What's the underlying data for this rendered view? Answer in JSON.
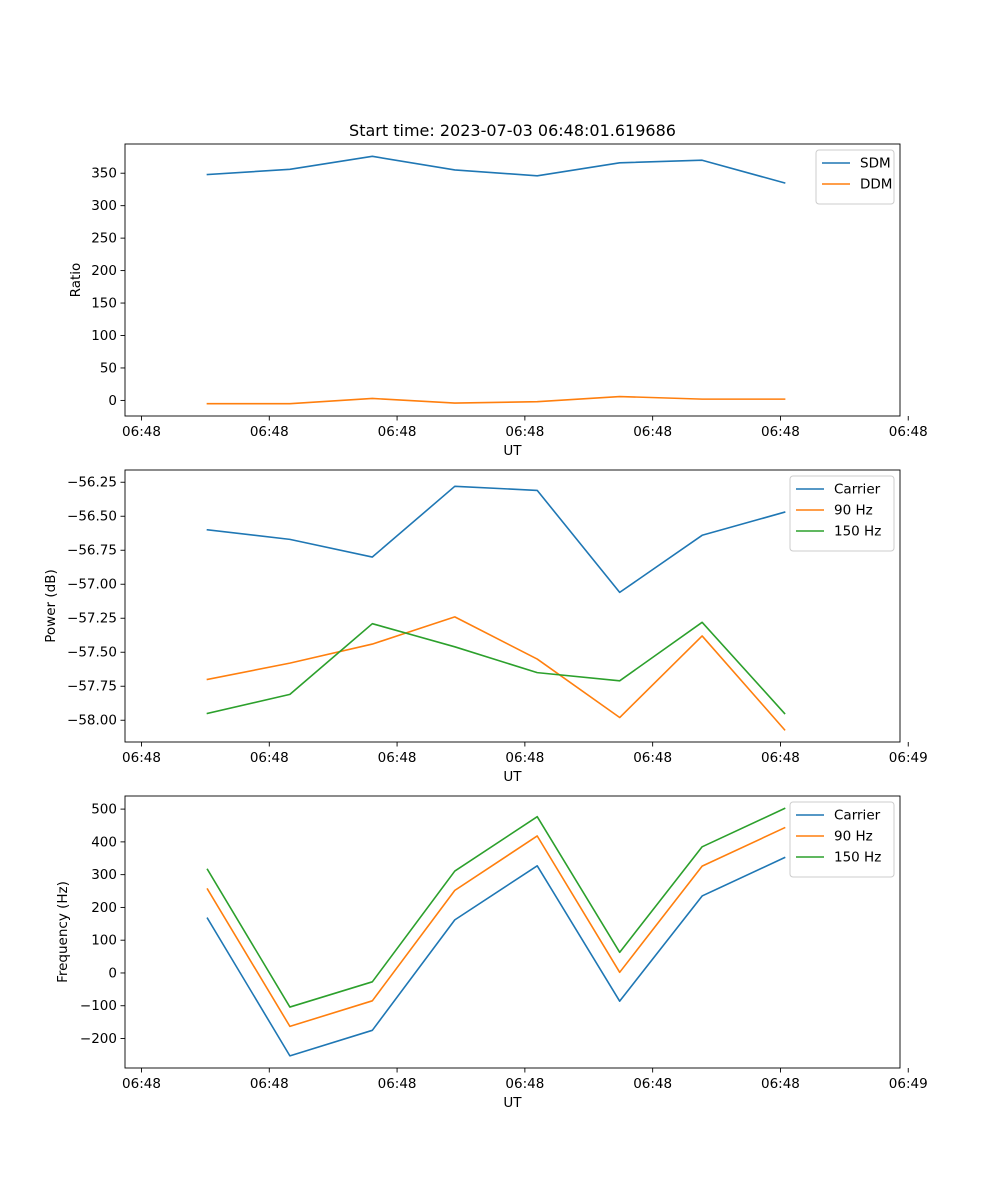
{
  "chart_data": [
    {
      "type": "line",
      "title": "Start time: 2023-07-03 06:48:01.619686",
      "xlabel": "UT",
      "ylabel": "Ratio",
      "xlim": [
        0,
        9.4
      ],
      "x": [
        1,
        2,
        3,
        4,
        5,
        6,
        7,
        8
      ],
      "x_ticks": [
        0.2,
        1.75,
        3.3,
        4.85,
        6.4,
        7.95,
        9.5
      ],
      "x_tick_labels": [
        "06:48",
        "06:48",
        "06:48",
        "06:48",
        "06:48",
        "06:48",
        "06:48"
      ],
      "ylim": [
        -24,
        395
      ],
      "y_ticks": [
        0,
        50,
        100,
        150,
        200,
        250,
        300,
        350
      ],
      "y_tick_labels": [
        "0",
        "50",
        "100",
        "150",
        "200",
        "250",
        "300",
        "350"
      ],
      "legend": "top-right",
      "series": [
        {
          "name": "SDM",
          "color": "#1f77b4",
          "values": [
            348,
            356,
            376,
            355,
            346,
            366,
            370,
            335
          ]
        },
        {
          "name": "DDM",
          "color": "#ff7f0e",
          "values": [
            -5,
            -5,
            3,
            -4,
            -2,
            6,
            2,
            2
          ]
        }
      ]
    },
    {
      "type": "line",
      "title": "",
      "xlabel": "UT",
      "ylabel": "Power (dB)",
      "xlim": [
        0,
        9.4
      ],
      "x": [
        1,
        2,
        3,
        4,
        5,
        6,
        7,
        8
      ],
      "x_ticks": [
        0.2,
        1.75,
        3.3,
        4.85,
        6.4,
        7.95,
        9.5
      ],
      "x_tick_labels": [
        "06:48",
        "06:48",
        "06:48",
        "06:48",
        "06:48",
        "06:48",
        "06:49"
      ],
      "ylim": [
        -58.16,
        -56.16
      ],
      "y_ticks": [
        -58.0,
        -57.75,
        -57.5,
        -57.25,
        -57.0,
        -56.75,
        -56.5,
        -56.25
      ],
      "y_tick_labels": [
        "−58.00",
        "−57.75",
        "−57.50",
        "−57.25",
        "−57.00",
        "−56.75",
        "−56.50",
        "−56.25"
      ],
      "legend": "top-right",
      "series": [
        {
          "name": "Carrier",
          "color": "#1f77b4",
          "values": [
            -56.6,
            -56.67,
            -56.8,
            -56.28,
            -56.31,
            -57.06,
            -56.64,
            -56.47
          ]
        },
        {
          "name": "90 Hz",
          "color": "#ff7f0e",
          "values": [
            -57.7,
            -57.58,
            -57.44,
            -57.24,
            -57.55,
            -57.98,
            -57.38,
            -58.07
          ]
        },
        {
          "name": "150 Hz",
          "color": "#2ca02c",
          "values": [
            -57.95,
            -57.81,
            -57.29,
            -57.46,
            -57.65,
            -57.71,
            -57.28,
            -57.95
          ]
        }
      ]
    },
    {
      "type": "line",
      "title": "",
      "xlabel": "UT",
      "ylabel": "Frequency (Hz)",
      "xlim": [
        0,
        9.4
      ],
      "x": [
        1,
        2,
        3,
        4,
        5,
        6,
        7,
        8
      ],
      "x_ticks": [
        0.2,
        1.75,
        3.3,
        4.85,
        6.4,
        7.95,
        9.5
      ],
      "x_tick_labels": [
        "06:48",
        "06:48",
        "06:48",
        "06:48",
        "06:48",
        "06:48",
        "06:49"
      ],
      "ylim": [
        -290,
        540
      ],
      "y_ticks": [
        -200,
        -100,
        0,
        100,
        200,
        300,
        400,
        500
      ],
      "y_tick_labels": [
        "−200",
        "−100",
        "0",
        "100",
        "200",
        "300",
        "400",
        "500"
      ],
      "legend": "top-right",
      "series": [
        {
          "name": "Carrier",
          "color": "#1f77b4",
          "values": [
            167,
            -253,
            -175,
            162,
            327,
            -86,
            235,
            352
          ]
        },
        {
          "name": "90 Hz",
          "color": "#ff7f0e",
          "values": [
            256,
            -163,
            -85,
            252,
            418,
            2,
            326,
            443
          ]
        },
        {
          "name": "150 Hz",
          "color": "#2ca02c",
          "values": [
            316,
            -104,
            -27,
            311,
            477,
            63,
            385,
            502
          ]
        }
      ]
    }
  ]
}
